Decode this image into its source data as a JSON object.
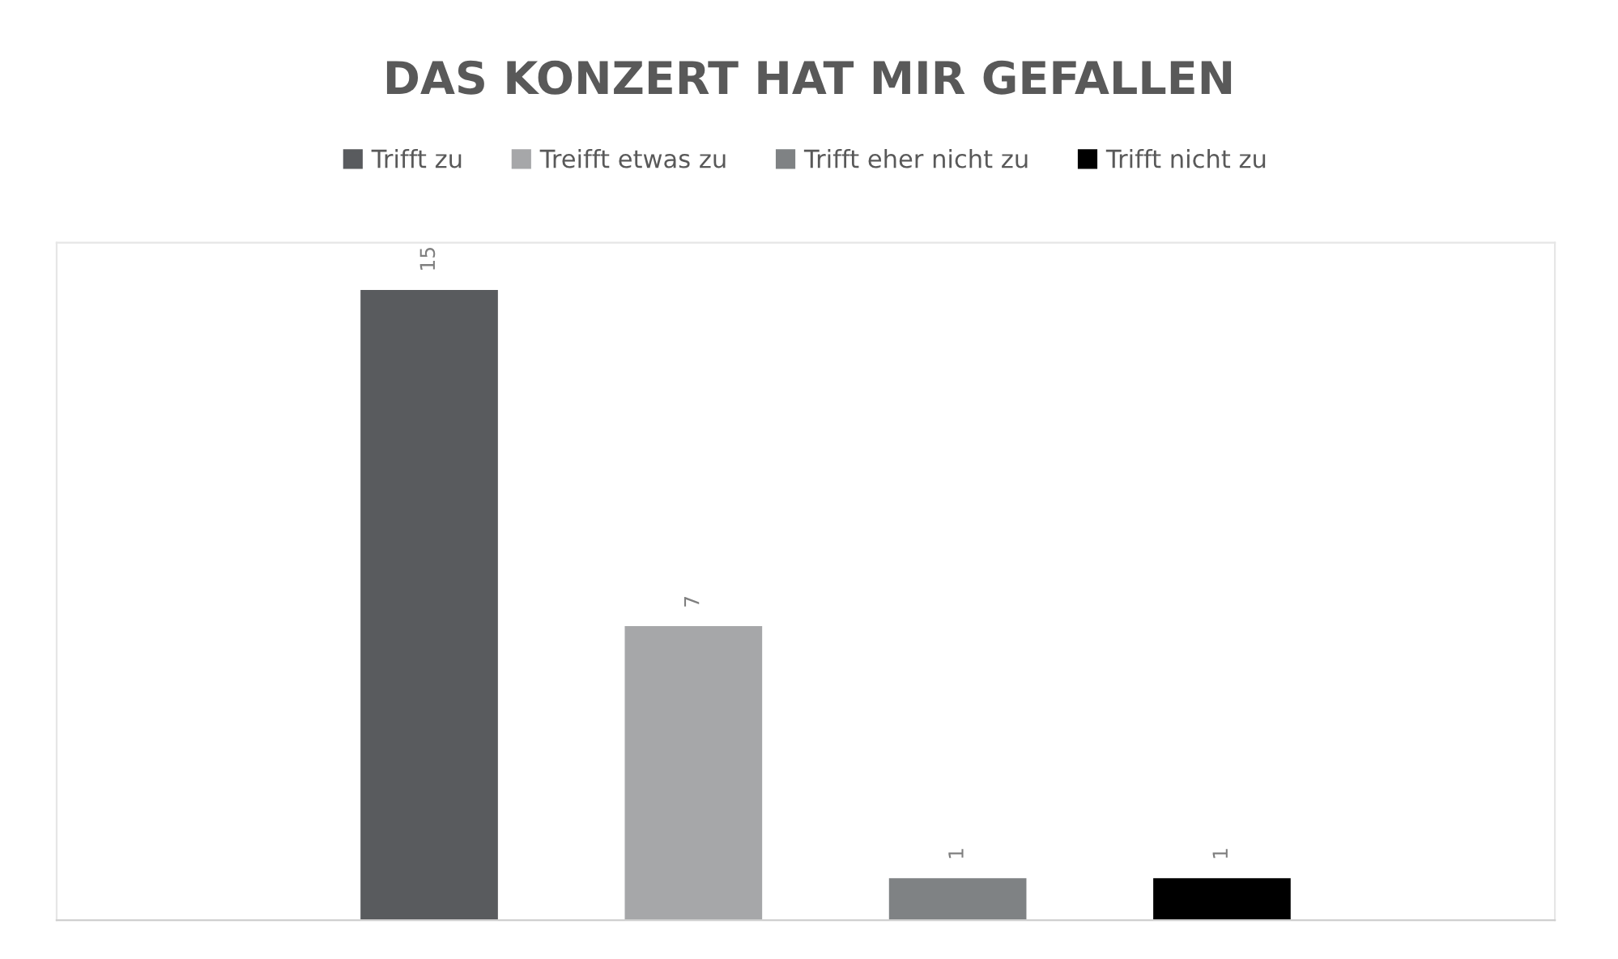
{
  "chart_data": {
    "type": "bar",
    "title": "DAS KONZERT HAT MIR GEFALLEN",
    "categories": [
      null,
      null,
      null,
      null
    ],
    "stacked": true,
    "series": [
      {
        "name": "Trifft zu",
        "color": "#595b5e",
        "values": [
          15,
          null,
          null,
          null
        ]
      },
      {
        "name": "Treifft etwas zu",
        "color": "#a6a7a9",
        "values": [
          null,
          7,
          null,
          null
        ]
      },
      {
        "name": "Trifft eher nicht zu",
        "color": "#7f8284",
        "values": [
          null,
          null,
          1,
          null
        ]
      },
      {
        "name": "Trifft nicht zu",
        "color": "#000000",
        "values": [
          null,
          null,
          null,
          1
        ]
      }
    ],
    "data_labels": true,
    "legend": "top",
    "grid": false,
    "tick_labels": false
  }
}
